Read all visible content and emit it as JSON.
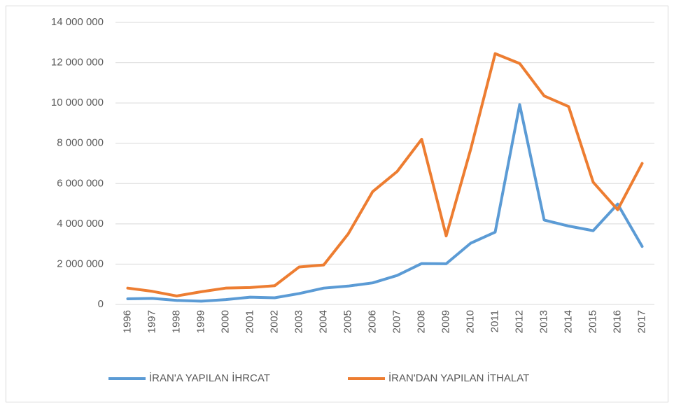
{
  "chart_data": {
    "type": "line",
    "categories": [
      "1996",
      "1997",
      "1998",
      "1999",
      "2000",
      "2001",
      "2002",
      "2003",
      "2004",
      "2005",
      "2006",
      "2007",
      "2008",
      "2009",
      "2010",
      "2011",
      "2012",
      "2013",
      "2014",
      "2015",
      "2016",
      "2017"
    ],
    "series": [
      {
        "name": "İRAN'A YAPILAN İHRCAT",
        "color": "#5b9bd5",
        "values": [
          280000,
          300000,
          200000,
          160000,
          240000,
          360000,
          330000,
          540000,
          810000,
          910000,
          1070000,
          1440000,
          2030000,
          2020000,
          3040000,
          3590000,
          9920000,
          4190000,
          3890000,
          3660000,
          4980000,
          2880000
        ]
      },
      {
        "name": "İRAN'DAN YAPILAN İTHALAT",
        "color": "#ed7d31",
        "values": [
          810000,
          650000,
          420000,
          630000,
          810000,
          840000,
          930000,
          1860000,
          1960000,
          3500000,
          5600000,
          6600000,
          8200000,
          3400000,
          7700000,
          12450000,
          11960000,
          10350000,
          9820000,
          6070000,
          4700000,
          7000000
        ]
      }
    ],
    "ylim": [
      0,
      14000000
    ],
    "yticks": [
      0,
      {
        "value": 2000000,
        "label": "2 000 000"
      },
      {
        "value": 4000000,
        "label": "4 000 000"
      },
      {
        "value": 6000000,
        "label": "6 000 000"
      },
      {
        "value": 8000000,
        "label": "8 000 000"
      },
      {
        "value": 10000000,
        "label": "10 000 000"
      },
      {
        "value": 12000000,
        "label": "12 000 000"
      },
      {
        "value": 14000000,
        "label": "14 000 000"
      }
    ],
    "grid": true,
    "legend": "bottom"
  }
}
